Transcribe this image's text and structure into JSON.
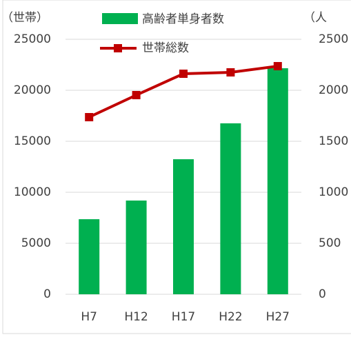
{
  "chart_data": {
    "type": "bar_line",
    "y_axis_label": "（世帯）",
    "y2_axis_label": "（人",
    "categories": [
      "H7",
      "H12",
      "H17",
      "H22",
      "H27"
    ],
    "series": [
      {
        "name": "高齢者単身者数",
        "type": "bar",
        "color": "#00b050",
        "axis": "y2",
        "values": [
          736,
          919,
          1324,
          1676,
          2216
        ]
      },
      {
        "name": "世帯総数",
        "type": "line",
        "color": "#c00000",
        "values": [
          17365,
          19527,
          21622,
          21757,
          22365
        ]
      }
    ],
    "ylim": [
      0,
      25000
    ],
    "yticks": [
      0,
      5000,
      10000,
      15000,
      20000,
      25000
    ],
    "y2lim": [
      0,
      2500
    ],
    "y2ticks": [
      0,
      500,
      1000,
      1500,
      2000,
      2500
    ],
    "grid": true
  }
}
